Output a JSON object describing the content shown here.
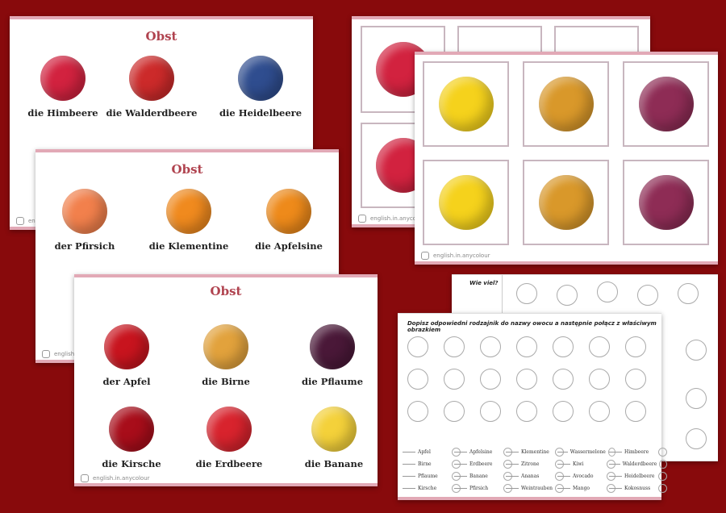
{
  "colors": {
    "background": "#880a0c",
    "title": "#b0434f",
    "border": "#e2a9b6"
  },
  "watermark": "english.in.anycolour",
  "card1": {
    "title": "Obst",
    "items": [
      {
        "label": "die Himbeere",
        "color": "#d2223f"
      },
      {
        "label": "die Walderdbeere",
        "color": "#cc2a2a"
      },
      {
        "label": "die Heidelbeere",
        "color": "#2f4d8f"
      }
    ]
  },
  "card2": {
    "title": "Obst",
    "items": [
      {
        "label": "der Pfirsich",
        "color": "#f2804c"
      },
      {
        "label": "die Klementine",
        "color": "#f08a1e"
      },
      {
        "label": "die Apfelsine",
        "color": "#ee8a1a"
      }
    ]
  },
  "card3": {
    "title": "Obst",
    "items": [
      {
        "label": "der Apfel",
        "color": "#c8141e"
      },
      {
        "label": "die Birne",
        "color": "#e2a23c"
      },
      {
        "label": "die Pflaume",
        "color": "#4a1838"
      },
      {
        "label": "die Kirsche",
        "color": "#a80d1a"
      },
      {
        "label": "die Erdbeere",
        "color": "#d8232d"
      },
      {
        "label": "die Banane",
        "color": "#f4d13a"
      }
    ]
  },
  "memory_back": {
    "tiles": [
      {
        "name": "raspberry",
        "color": "#d2223f"
      },
      {
        "name": "raspberry",
        "color": "#d2223f"
      }
    ]
  },
  "memory_front": {
    "tiles": [
      {
        "name": "lemon",
        "color": "#f5d21c"
      },
      {
        "name": "pineapple",
        "color": "#d9982a"
      },
      {
        "name": "grapes",
        "color": "#8e2c55"
      },
      {
        "name": "lemon",
        "color": "#f5d21c"
      },
      {
        "name": "pineapple",
        "color": "#d9982a"
      },
      {
        "name": "grapes",
        "color": "#8e2c55"
      }
    ]
  },
  "counting": {
    "title": "Wie viel?"
  },
  "worksheet": {
    "instruction": "Dopisz odpowiedni rodzajnik do nazwy owocu a następnie połącz z właściwym obrazkiem",
    "columns": [
      [
        "Apfel",
        "Birne",
        "Pflaume",
        "Kirsche"
      ],
      [
        "Apfelsine",
        "Erdbeere",
        "Banane",
        "Pfirsich"
      ],
      [
        "Klementine",
        "Zitrone",
        "Ananas",
        "Weintrauben"
      ],
      [
        "Wassermelone",
        "Kiwi",
        "Avocado",
        "Mango"
      ],
      [
        "Himbeere",
        "Walderdbeere",
        "Heidelbeere",
        "Kokosnuss"
      ]
    ]
  }
}
